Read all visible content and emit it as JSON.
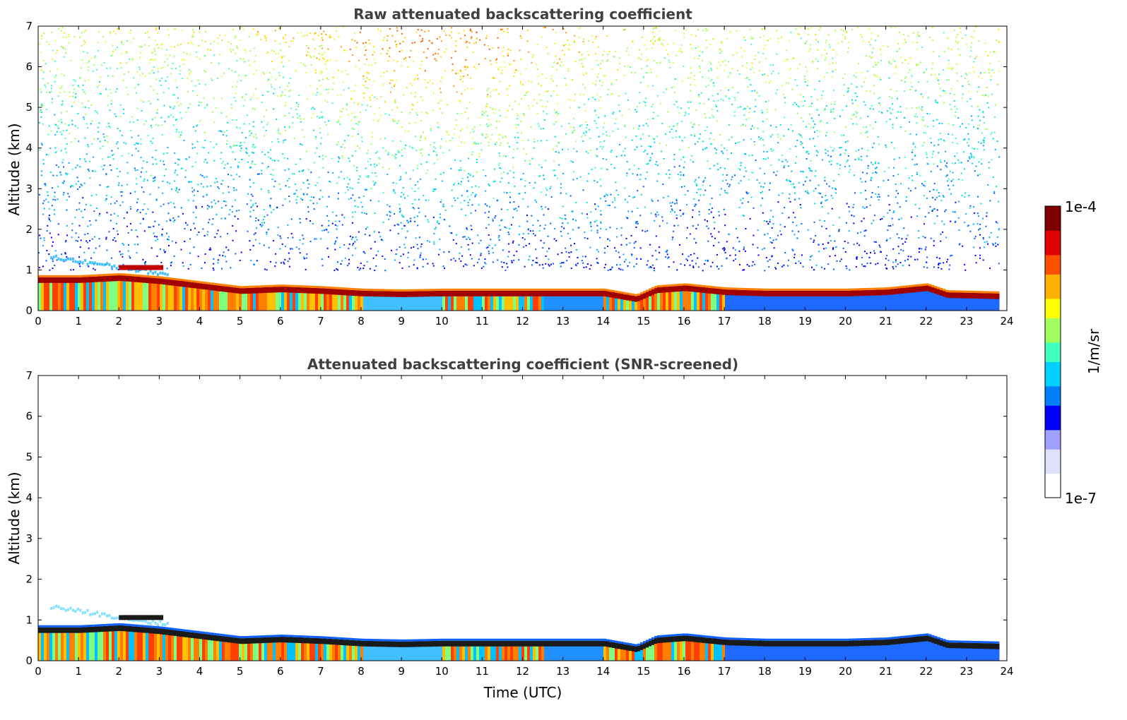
{
  "chart_data": [
    {
      "type": "heatmap",
      "title": "Raw attenuated backscattering coefficient",
      "xlabel": "",
      "ylabel": "Altitude (km)",
      "xlim": [
        0,
        24
      ],
      "ylim": [
        0,
        7
      ],
      "x_ticks": [
        0,
        1,
        2,
        3,
        4,
        5,
        6,
        7,
        8,
        9,
        10,
        11,
        12,
        13,
        14,
        15,
        16,
        17,
        18,
        19,
        20,
        21,
        22,
        23,
        24
      ],
      "y_ticks": [
        0,
        1,
        2,
        3,
        4,
        5,
        6,
        7
      ],
      "data_end_time": 23.8,
      "boundary_layer_top_km": [
        [
          0,
          0.75
        ],
        [
          1,
          0.75
        ],
        [
          2,
          0.8
        ],
        [
          3,
          0.72
        ],
        [
          4,
          0.6
        ],
        [
          5,
          0.48
        ],
        [
          6,
          0.52
        ],
        [
          7,
          0.48
        ],
        [
          8,
          0.42
        ],
        [
          9,
          0.4
        ],
        [
          10,
          0.42
        ],
        [
          11,
          0.42
        ],
        [
          12,
          0.42
        ],
        [
          13,
          0.42
        ],
        [
          14,
          0.42
        ],
        [
          14.8,
          0.28
        ],
        [
          15.3,
          0.5
        ],
        [
          16,
          0.55
        ],
        [
          17,
          0.45
        ],
        [
          18,
          0.42
        ],
        [
          19,
          0.42
        ],
        [
          20,
          0.42
        ],
        [
          21,
          0.45
        ],
        [
          22,
          0.55
        ],
        [
          22.5,
          0.38
        ],
        [
          23.8,
          0.35
        ]
      ],
      "noise_field": "noisy background up to 7 km, denser and higher-valued around 7-13 UTC"
    },
    {
      "type": "heatmap",
      "title": "Attenuated backscattering coefficient (SNR-screened)",
      "xlabel": "Time (UTC)",
      "ylabel": "Altitude (km)",
      "xlim": [
        0,
        24
      ],
      "ylim": [
        0,
        7
      ],
      "x_ticks": [
        0,
        1,
        2,
        3,
        4,
        5,
        6,
        7,
        8,
        9,
        10,
        11,
        12,
        13,
        14,
        15,
        16,
        17,
        18,
        19,
        20,
        21,
        22,
        23,
        24
      ],
      "y_ticks": [
        0,
        1,
        2,
        3,
        4,
        5,
        6,
        7
      ],
      "data_end_time": 23.8,
      "boundary_layer_top_km": [
        [
          0,
          0.75
        ],
        [
          1,
          0.75
        ],
        [
          2,
          0.8
        ],
        [
          3,
          0.72
        ],
        [
          4,
          0.6
        ],
        [
          5,
          0.48
        ],
        [
          6,
          0.52
        ],
        [
          7,
          0.48
        ],
        [
          8,
          0.42
        ],
        [
          9,
          0.4
        ],
        [
          10,
          0.42
        ],
        [
          11,
          0.42
        ],
        [
          12,
          0.42
        ],
        [
          13,
          0.42
        ],
        [
          14,
          0.42
        ],
        [
          14.8,
          0.28
        ],
        [
          15.3,
          0.5
        ],
        [
          16,
          0.55
        ],
        [
          17,
          0.45
        ],
        [
          18,
          0.42
        ],
        [
          19,
          0.42
        ],
        [
          20,
          0.42
        ],
        [
          21,
          0.45
        ],
        [
          22,
          0.55
        ],
        [
          22.5,
          0.38
        ],
        [
          23.8,
          0.35
        ]
      ]
    }
  ],
  "colorbar": {
    "label": "1/m/sr",
    "max_label": "1e-4",
    "min_label": "1e-7",
    "scale": "log",
    "range": [
      1e-07,
      0.0001
    ],
    "colors": [
      "#ffffff",
      "#e0e0ff",
      "#a0a0ff",
      "#0000ff",
      "#0080ff",
      "#00d0ff",
      "#40ffc0",
      "#a0ff60",
      "#ffff00",
      "#ffb000",
      "#ff5000",
      "#e00000",
      "#800000"
    ]
  }
}
